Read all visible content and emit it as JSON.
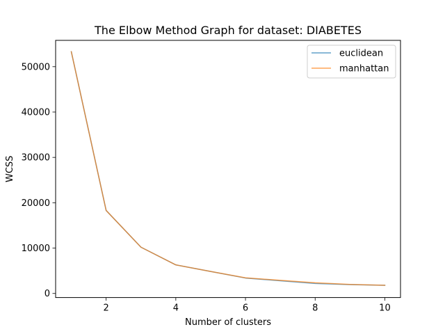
{
  "chart_data": {
    "type": "line",
    "title": "The Elbow Method Graph for dataset: DIABETES",
    "xlabel": "Number of clusters",
    "ylabel": "WCSS",
    "x": [
      1,
      2,
      3,
      4,
      5,
      6,
      7,
      8,
      9,
      10
    ],
    "xticks": [
      2,
      4,
      6,
      8,
      10
    ],
    "xtick_labels": [
      "2",
      "4",
      "6",
      "8",
      "10"
    ],
    "yticks": [
      0,
      10000,
      20000,
      30000,
      40000,
      50000
    ],
    "ytick_labels": [
      "0",
      "10000",
      "20000",
      "30000",
      "40000",
      "50000"
    ],
    "xlim": [
      0.55,
      10.45
    ],
    "ylim": [
      -900,
      55800
    ],
    "grid": false,
    "legend_position": "top-right",
    "series": [
      {
        "name": "euclidean",
        "color": "#1f77b4",
        "values": [
          53300,
          18300,
          10200,
          6300,
          4850,
          3400,
          2800,
          2200,
          1950,
          1800
        ]
      },
      {
        "name": "manhattan",
        "color": "#ff7f0e",
        "values": [
          53300,
          18300,
          10200,
          6300,
          4850,
          3450,
          2900,
          2350,
          2000,
          1800
        ]
      }
    ]
  }
}
